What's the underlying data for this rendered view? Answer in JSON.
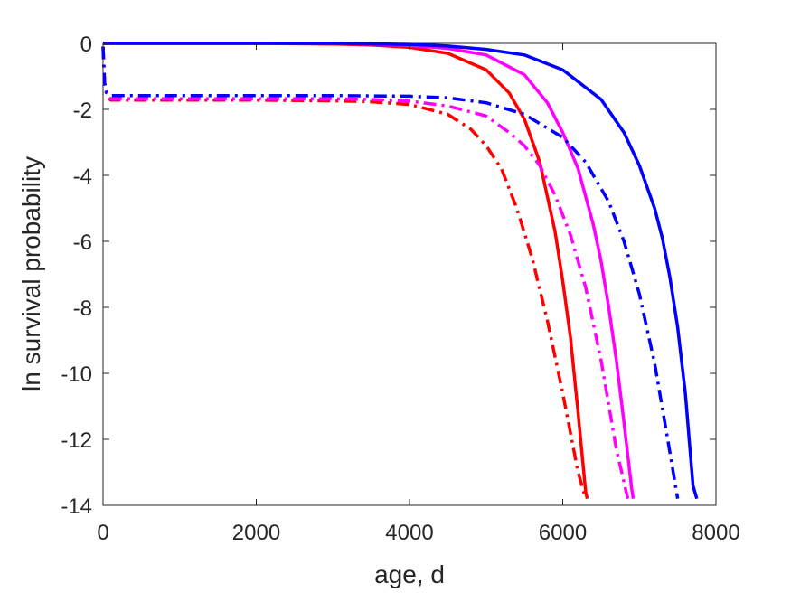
{
  "chart_data": {
    "type": "line",
    "xlabel": "age, d",
    "ylabel": "ln survival probability",
    "xlim": [
      0,
      8000
    ],
    "ylim": [
      -14,
      0
    ],
    "xticks": [
      0,
      2000,
      4000,
      6000,
      8000
    ],
    "yticks": [
      0,
      -2,
      -4,
      -6,
      -8,
      -10,
      -12,
      -14
    ],
    "xtick_labels": [
      "0",
      "2000",
      "4000",
      "6000",
      "8000"
    ],
    "ytick_labels": [
      "0",
      "-2",
      "-4",
      "-6",
      "-8",
      "-10",
      "-12",
      "-14"
    ],
    "grid": false,
    "legend": "none",
    "series": [
      {
        "color": "#ff0000",
        "style": "solid",
        "x": [
          0,
          1000,
          2000,
          3000,
          3500,
          4000,
          4500,
          5000,
          5300,
          5500,
          5700,
          5900,
          6000,
          6100,
          6200,
          6300,
          6320
        ],
        "y": [
          0,
          0,
          0,
          -0.02,
          -0.05,
          -0.12,
          -0.3,
          -0.8,
          -1.5,
          -2.3,
          -3.6,
          -5.7,
          -7.2,
          -8.9,
          -11.2,
          -13.6,
          -13.8
        ]
      },
      {
        "color": "#ff00ff",
        "style": "solid",
        "x": [
          0,
          1000,
          2000,
          3000,
          3500,
          4000,
          4500,
          5000,
          5500,
          5800,
          6000,
          6200,
          6400,
          6500,
          6600,
          6700,
          6800,
          6900,
          6920
        ],
        "y": [
          0,
          0,
          0,
          0,
          -0.02,
          -0.06,
          -0.15,
          -0.35,
          -0.95,
          -1.8,
          -2.7,
          -3.8,
          -5.5,
          -6.6,
          -8.0,
          -9.6,
          -11.5,
          -13.5,
          -13.8
        ]
      },
      {
        "color": "#0000ff",
        "style": "solid",
        "x": [
          0,
          1000,
          2000,
          3000,
          4000,
          4500,
          5000,
          5500,
          6000,
          6500,
          6800,
          7000,
          7200,
          7300,
          7400,
          7500,
          7600,
          7700,
          7750
        ],
        "y": [
          0,
          0,
          0,
          0,
          -0.03,
          -0.08,
          -0.18,
          -0.35,
          -0.8,
          -1.7,
          -2.7,
          -3.7,
          -5.0,
          -5.9,
          -7.1,
          -8.6,
          -10.6,
          -13.4,
          -13.8
        ]
      },
      {
        "color": "#ff0000",
        "style": "dashdot",
        "x": [
          0,
          20,
          50,
          100,
          1000,
          2000,
          3000,
          3500,
          4000,
          4500,
          4800,
          5000,
          5200,
          5400,
          5600,
          5800,
          6000,
          6100,
          6200,
          6300
        ],
        "y": [
          -0.1,
          -1.2,
          -1.6,
          -1.72,
          -1.72,
          -1.72,
          -1.74,
          -1.77,
          -1.85,
          -2.15,
          -2.6,
          -3.1,
          -3.8,
          -5.0,
          -6.5,
          -8.4,
          -10.6,
          -11.8,
          -13.0,
          -13.8
        ]
      },
      {
        "color": "#ff00ff",
        "style": "dashdot",
        "x": [
          0,
          20,
          50,
          100,
          1000,
          2000,
          3000,
          3500,
          4000,
          4500,
          5000,
          5300,
          5500,
          5700,
          5900,
          6100,
          6300,
          6500,
          6700,
          6850
        ],
        "y": [
          -0.1,
          -1.2,
          -1.55,
          -1.68,
          -1.68,
          -1.68,
          -1.68,
          -1.7,
          -1.75,
          -1.9,
          -2.2,
          -2.7,
          -3.1,
          -3.7,
          -4.6,
          -5.8,
          -7.4,
          -9.6,
          -12.3,
          -13.8
        ]
      },
      {
        "color": "#0000ff",
        "style": "dashdot",
        "x": [
          0,
          20,
          50,
          100,
          1000,
          2000,
          3000,
          4000,
          4500,
          5000,
          5500,
          6000,
          6300,
          6600,
          6800,
          7000,
          7200,
          7400,
          7500
        ],
        "y": [
          -0.1,
          -1.2,
          -1.5,
          -1.58,
          -1.58,
          -1.58,
          -1.58,
          -1.6,
          -1.65,
          -1.8,
          -2.15,
          -2.85,
          -3.6,
          -4.8,
          -6.0,
          -7.6,
          -9.7,
          -12.4,
          -13.8
        ]
      }
    ]
  }
}
